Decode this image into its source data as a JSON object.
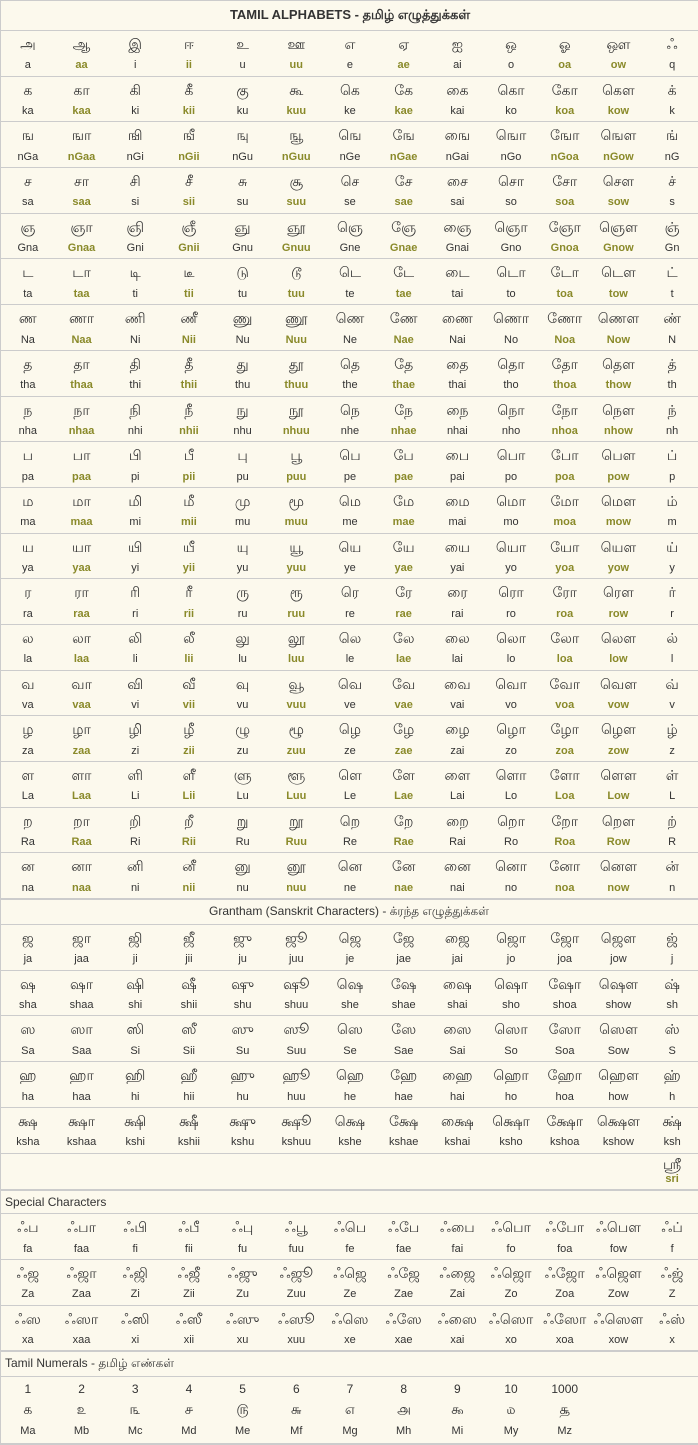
{
  "title": "TAMIL ALPHABETS - தமிழ் எழுத்துக்கள்",
  "hiCols": [
    1,
    3,
    5,
    7,
    10,
    11
  ],
  "main": [
    [
      [
        "அ",
        "a"
      ],
      [
        "ஆ",
        "aa"
      ],
      [
        "இ",
        "i"
      ],
      [
        "ஈ",
        "ii"
      ],
      [
        "உ",
        "u"
      ],
      [
        "ஊ",
        "uu"
      ],
      [
        "எ",
        "e"
      ],
      [
        "ஏ",
        "ae"
      ],
      [
        "ஐ",
        "ai"
      ],
      [
        "ஒ",
        "o"
      ],
      [
        "ஓ",
        "oa"
      ],
      [
        "ஔ",
        "ow"
      ],
      [
        "ஃ",
        "q"
      ]
    ],
    [
      [
        "க",
        "ka"
      ],
      [
        "கா",
        "kaa"
      ],
      [
        "கி",
        "ki"
      ],
      [
        "கீ",
        "kii"
      ],
      [
        "கு",
        "ku"
      ],
      [
        "கூ",
        "kuu"
      ],
      [
        "கெ",
        "ke"
      ],
      [
        "கே",
        "kae"
      ],
      [
        "கை",
        "kai"
      ],
      [
        "கொ",
        "ko"
      ],
      [
        "கோ",
        "koa"
      ],
      [
        "கௌ",
        "kow"
      ],
      [
        "க்",
        "k"
      ]
    ],
    [
      [
        "ங",
        "nGa"
      ],
      [
        "ஙா",
        "nGaa"
      ],
      [
        "ஙி",
        "nGi"
      ],
      [
        "ஙீ",
        "nGii"
      ],
      [
        "ஙு",
        "nGu"
      ],
      [
        "ஙூ",
        "nGuu"
      ],
      [
        "ஙெ",
        "nGe"
      ],
      [
        "ஙே",
        "nGae"
      ],
      [
        "ஙை",
        "nGai"
      ],
      [
        "ஙொ",
        "nGo"
      ],
      [
        "ஙோ",
        "nGoa"
      ],
      [
        "ஙௌ",
        "nGow"
      ],
      [
        "ங்",
        "nG"
      ]
    ],
    [
      [
        "ச",
        "sa"
      ],
      [
        "சா",
        "saa"
      ],
      [
        "சி",
        "si"
      ],
      [
        "சீ",
        "sii"
      ],
      [
        "சு",
        "su"
      ],
      [
        "சூ",
        "suu"
      ],
      [
        "செ",
        "se"
      ],
      [
        "சே",
        "sae"
      ],
      [
        "சை",
        "sai"
      ],
      [
        "சொ",
        "so"
      ],
      [
        "சோ",
        "soa"
      ],
      [
        "சௌ",
        "sow"
      ],
      [
        "ச்",
        "s"
      ]
    ],
    [
      [
        "ஞ",
        "Gna"
      ],
      [
        "ஞா",
        "Gnaa"
      ],
      [
        "ஞி",
        "Gni"
      ],
      [
        "ஞீ",
        "Gnii"
      ],
      [
        "ஞு",
        "Gnu"
      ],
      [
        "ஞூ",
        "Gnuu"
      ],
      [
        "ஞெ",
        "Gne"
      ],
      [
        "ஞே",
        "Gnae"
      ],
      [
        "ஞை",
        "Gnai"
      ],
      [
        "ஞொ",
        "Gno"
      ],
      [
        "ஞோ",
        "Gnoa"
      ],
      [
        "ஞௌ",
        "Gnow"
      ],
      [
        "ஞ்",
        "Gn"
      ]
    ],
    [
      [
        "ட",
        "ta"
      ],
      [
        "டா",
        "taa"
      ],
      [
        "டி",
        "ti"
      ],
      [
        "டீ",
        "tii"
      ],
      [
        "டு",
        "tu"
      ],
      [
        "டூ",
        "tuu"
      ],
      [
        "டெ",
        "te"
      ],
      [
        "டே",
        "tae"
      ],
      [
        "டை",
        "tai"
      ],
      [
        "டொ",
        "to"
      ],
      [
        "டோ",
        "toa"
      ],
      [
        "டௌ",
        "tow"
      ],
      [
        "ட்",
        "t"
      ]
    ],
    [
      [
        "ண",
        "Na"
      ],
      [
        "ணா",
        "Naa"
      ],
      [
        "ணி",
        "Ni"
      ],
      [
        "ணீ",
        "Nii"
      ],
      [
        "ணு",
        "Nu"
      ],
      [
        "ணூ",
        "Nuu"
      ],
      [
        "ணெ",
        "Ne"
      ],
      [
        "ணே",
        "Nae"
      ],
      [
        "ணை",
        "Nai"
      ],
      [
        "ணொ",
        "No"
      ],
      [
        "ணோ",
        "Noa"
      ],
      [
        "ணௌ",
        "Now"
      ],
      [
        "ண்",
        "N"
      ]
    ],
    [
      [
        "த",
        "tha"
      ],
      [
        "தா",
        "thaa"
      ],
      [
        "தி",
        "thi"
      ],
      [
        "தீ",
        "thii"
      ],
      [
        "து",
        "thu"
      ],
      [
        "தூ",
        "thuu"
      ],
      [
        "தெ",
        "the"
      ],
      [
        "தே",
        "thae"
      ],
      [
        "தை",
        "thai"
      ],
      [
        "தொ",
        "tho"
      ],
      [
        "தோ",
        "thoa"
      ],
      [
        "தௌ",
        "thow"
      ],
      [
        "த்",
        "th"
      ]
    ],
    [
      [
        "ந",
        "nha"
      ],
      [
        "நா",
        "nhaa"
      ],
      [
        "நி",
        "nhi"
      ],
      [
        "நீ",
        "nhii"
      ],
      [
        "நு",
        "nhu"
      ],
      [
        "நூ",
        "nhuu"
      ],
      [
        "நெ",
        "nhe"
      ],
      [
        "நே",
        "nhae"
      ],
      [
        "நை",
        "nhai"
      ],
      [
        "நொ",
        "nho"
      ],
      [
        "நோ",
        "nhoa"
      ],
      [
        "நௌ",
        "nhow"
      ],
      [
        "ந்",
        "nh"
      ]
    ],
    [
      [
        "ப",
        "pa"
      ],
      [
        "பா",
        "paa"
      ],
      [
        "பி",
        "pi"
      ],
      [
        "பீ",
        "pii"
      ],
      [
        "பு",
        "pu"
      ],
      [
        "பூ",
        "puu"
      ],
      [
        "பெ",
        "pe"
      ],
      [
        "பே",
        "pae"
      ],
      [
        "பை",
        "pai"
      ],
      [
        "பொ",
        "po"
      ],
      [
        "போ",
        "poa"
      ],
      [
        "பௌ",
        "pow"
      ],
      [
        "ப்",
        "p"
      ]
    ],
    [
      [
        "ம",
        "ma"
      ],
      [
        "மா",
        "maa"
      ],
      [
        "மி",
        "mi"
      ],
      [
        "மீ",
        "mii"
      ],
      [
        "மு",
        "mu"
      ],
      [
        "மூ",
        "muu"
      ],
      [
        "மெ",
        "me"
      ],
      [
        "மே",
        "mae"
      ],
      [
        "மை",
        "mai"
      ],
      [
        "மொ",
        "mo"
      ],
      [
        "மோ",
        "moa"
      ],
      [
        "மௌ",
        "mow"
      ],
      [
        "ம்",
        "m"
      ]
    ],
    [
      [
        "ய",
        "ya"
      ],
      [
        "யா",
        "yaa"
      ],
      [
        "யி",
        "yi"
      ],
      [
        "யீ",
        "yii"
      ],
      [
        "யு",
        "yu"
      ],
      [
        "யூ",
        "yuu"
      ],
      [
        "யெ",
        "ye"
      ],
      [
        "யே",
        "yae"
      ],
      [
        "யை",
        "yai"
      ],
      [
        "யொ",
        "yo"
      ],
      [
        "யோ",
        "yoa"
      ],
      [
        "யௌ",
        "yow"
      ],
      [
        "ய்",
        "y"
      ]
    ],
    [
      [
        "ர",
        "ra"
      ],
      [
        "ரா",
        "raa"
      ],
      [
        "ரி",
        "ri"
      ],
      [
        "ரீ",
        "rii"
      ],
      [
        "ரு",
        "ru"
      ],
      [
        "ரூ",
        "ruu"
      ],
      [
        "ரெ",
        "re"
      ],
      [
        "ரே",
        "rae"
      ],
      [
        "ரை",
        "rai"
      ],
      [
        "ரொ",
        "ro"
      ],
      [
        "ரோ",
        "roa"
      ],
      [
        "ரௌ",
        "row"
      ],
      [
        "ர்",
        "r"
      ]
    ],
    [
      [
        "ல",
        "la"
      ],
      [
        "லா",
        "laa"
      ],
      [
        "லி",
        "li"
      ],
      [
        "லீ",
        "lii"
      ],
      [
        "லு",
        "lu"
      ],
      [
        "லூ",
        "luu"
      ],
      [
        "லெ",
        "le"
      ],
      [
        "லே",
        "lae"
      ],
      [
        "லை",
        "lai"
      ],
      [
        "லொ",
        "lo"
      ],
      [
        "லோ",
        "loa"
      ],
      [
        "லௌ",
        "low"
      ],
      [
        "ல்",
        "l"
      ]
    ],
    [
      [
        "வ",
        "va"
      ],
      [
        "வா",
        "vaa"
      ],
      [
        "வி",
        "vi"
      ],
      [
        "வீ",
        "vii"
      ],
      [
        "வு",
        "vu"
      ],
      [
        "வூ",
        "vuu"
      ],
      [
        "வெ",
        "ve"
      ],
      [
        "வே",
        "vae"
      ],
      [
        "வை",
        "vai"
      ],
      [
        "வொ",
        "vo"
      ],
      [
        "வோ",
        "voa"
      ],
      [
        "வௌ",
        "vow"
      ],
      [
        "வ்",
        "v"
      ]
    ],
    [
      [
        "ழ",
        "za"
      ],
      [
        "ழா",
        "zaa"
      ],
      [
        "ழி",
        "zi"
      ],
      [
        "ழீ",
        "zii"
      ],
      [
        "ழு",
        "zu"
      ],
      [
        "ழூ",
        "zuu"
      ],
      [
        "ழெ",
        "ze"
      ],
      [
        "ழே",
        "zae"
      ],
      [
        "ழை",
        "zai"
      ],
      [
        "ழொ",
        "zo"
      ],
      [
        "ழோ",
        "zoa"
      ],
      [
        "ழௌ",
        "zow"
      ],
      [
        "ழ்",
        "z"
      ]
    ],
    [
      [
        "ள",
        "La"
      ],
      [
        "ளா",
        "Laa"
      ],
      [
        "ளி",
        "Li"
      ],
      [
        "ளீ",
        "Lii"
      ],
      [
        "ளு",
        "Lu"
      ],
      [
        "ளூ",
        "Luu"
      ],
      [
        "ளெ",
        "Le"
      ],
      [
        "ளே",
        "Lae"
      ],
      [
        "ளை",
        "Lai"
      ],
      [
        "ளொ",
        "Lo"
      ],
      [
        "ளோ",
        "Loa"
      ],
      [
        "ளௌ",
        "Low"
      ],
      [
        "ள்",
        "L"
      ]
    ],
    [
      [
        "ற",
        "Ra"
      ],
      [
        "றா",
        "Raa"
      ],
      [
        "றி",
        "Ri"
      ],
      [
        "றீ",
        "Rii"
      ],
      [
        "று",
        "Ru"
      ],
      [
        "றூ",
        "Ruu"
      ],
      [
        "றெ",
        "Re"
      ],
      [
        "றே",
        "Rae"
      ],
      [
        "றை",
        "Rai"
      ],
      [
        "றொ",
        "Ro"
      ],
      [
        "றோ",
        "Roa"
      ],
      [
        "றௌ",
        "Row"
      ],
      [
        "ற்",
        "R"
      ]
    ],
    [
      [
        "ன",
        "na"
      ],
      [
        "னா",
        "naa"
      ],
      [
        "னி",
        "ni"
      ],
      [
        "னீ",
        "nii"
      ],
      [
        "னு",
        "nu"
      ],
      [
        "னூ",
        "nuu"
      ],
      [
        "னெ",
        "ne"
      ],
      [
        "னே",
        "nae"
      ],
      [
        "னை",
        "nai"
      ],
      [
        "னொ",
        "no"
      ],
      [
        "னோ",
        "noa"
      ],
      [
        "னௌ",
        "now"
      ],
      [
        "ன்",
        "n"
      ]
    ]
  ],
  "granthamTitle": "Grantham (Sanskrit Characters) - க்ரந்த எழுத்துக்கள்",
  "grantham": [
    [
      [
        "ஜ",
        "ja"
      ],
      [
        "ஜா",
        "jaa"
      ],
      [
        "ஜி",
        "ji"
      ],
      [
        "ஜீ",
        "jii"
      ],
      [
        "ஜு",
        "ju"
      ],
      [
        "ஜூ",
        "juu"
      ],
      [
        "ஜெ",
        "je"
      ],
      [
        "ஜே",
        "jae"
      ],
      [
        "ஜை",
        "jai"
      ],
      [
        "ஜொ",
        "jo"
      ],
      [
        "ஜோ",
        "joa"
      ],
      [
        "ஜௌ",
        "jow"
      ],
      [
        "ஜ்",
        "j"
      ]
    ],
    [
      [
        "ஷ",
        "sha"
      ],
      [
        "ஷா",
        "shaa"
      ],
      [
        "ஷி",
        "shi"
      ],
      [
        "ஷீ",
        "shii"
      ],
      [
        "ஷு",
        "shu"
      ],
      [
        "ஷூ",
        "shuu"
      ],
      [
        "ஷெ",
        "she"
      ],
      [
        "ஷே",
        "shae"
      ],
      [
        "ஷை",
        "shai"
      ],
      [
        "ஷொ",
        "sho"
      ],
      [
        "ஷோ",
        "shoa"
      ],
      [
        "ஷௌ",
        "show"
      ],
      [
        "ஷ்",
        "sh"
      ]
    ],
    [
      [
        "ஸ",
        "Sa"
      ],
      [
        "ஸா",
        "Saa"
      ],
      [
        "ஸி",
        "Si"
      ],
      [
        "ஸீ",
        "Sii"
      ],
      [
        "ஸு",
        "Su"
      ],
      [
        "ஸூ",
        "Suu"
      ],
      [
        "ஸெ",
        "Se"
      ],
      [
        "ஸே",
        "Sae"
      ],
      [
        "ஸை",
        "Sai"
      ],
      [
        "ஸொ",
        "So"
      ],
      [
        "ஸோ",
        "Soa"
      ],
      [
        "ஸௌ",
        "Sow"
      ],
      [
        "ஸ்",
        "S"
      ]
    ],
    [
      [
        "ஹ",
        "ha"
      ],
      [
        "ஹா",
        "haa"
      ],
      [
        "ஹி",
        "hi"
      ],
      [
        "ஹீ",
        "hii"
      ],
      [
        "ஹு",
        "hu"
      ],
      [
        "ஹூ",
        "huu"
      ],
      [
        "ஹெ",
        "he"
      ],
      [
        "ஹே",
        "hae"
      ],
      [
        "ஹை",
        "hai"
      ],
      [
        "ஹொ",
        "ho"
      ],
      [
        "ஹோ",
        "hoa"
      ],
      [
        "ஹௌ",
        "how"
      ],
      [
        "ஹ்",
        "h"
      ]
    ],
    [
      [
        "க்ஷ",
        "ksha"
      ],
      [
        "க்ஷா",
        "kshaa"
      ],
      [
        "க்ஷி",
        "kshi"
      ],
      [
        "க்ஷீ",
        "kshii"
      ],
      [
        "க்ஷு",
        "kshu"
      ],
      [
        "க்ஷூ",
        "kshuu"
      ],
      [
        "க்ஷெ",
        "kshe"
      ],
      [
        "க்ஷே",
        "kshae"
      ],
      [
        "க்ஷை",
        "kshai"
      ],
      [
        "க்ஷொ",
        "ksho"
      ],
      [
        "க்ஷோ",
        "kshoa"
      ],
      [
        "க்ஷௌ",
        "kshow"
      ],
      [
        "க்ஷ்",
        "ksh"
      ]
    ]
  ],
  "sri": {
    "glyph": "ஸ்ரீ",
    "roman": "sri"
  },
  "specialTitle": "Special Characters",
  "special": [
    [
      [
        "ஃப",
        "fa"
      ],
      [
        "ஃபா",
        "faa"
      ],
      [
        "ஃபி",
        "fi"
      ],
      [
        "ஃபீ",
        "fii"
      ],
      [
        "ஃபு",
        "fu"
      ],
      [
        "ஃபூ",
        "fuu"
      ],
      [
        "ஃபெ",
        "fe"
      ],
      [
        "ஃபே",
        "fae"
      ],
      [
        "ஃபை",
        "fai"
      ],
      [
        "ஃபொ",
        "fo"
      ],
      [
        "ஃபோ",
        "foa"
      ],
      [
        "ஃபௌ",
        "fow"
      ],
      [
        "ஃப்",
        "f"
      ]
    ],
    [
      [
        "ஃஜ",
        "Za"
      ],
      [
        "ஃஜா",
        "Zaa"
      ],
      [
        "ஃஜி",
        "Zi"
      ],
      [
        "ஃஜீ",
        "Zii"
      ],
      [
        "ஃஜு",
        "Zu"
      ],
      [
        "ஃஜூ",
        "Zuu"
      ],
      [
        "ஃஜெ",
        "Ze"
      ],
      [
        "ஃஜே",
        "Zae"
      ],
      [
        "ஃஜை",
        "Zai"
      ],
      [
        "ஃஜொ",
        "Zo"
      ],
      [
        "ஃஜோ",
        "Zoa"
      ],
      [
        "ஃஜௌ",
        "Zow"
      ],
      [
        "ஃஜ்",
        "Z"
      ]
    ],
    [
      [
        "ஃஸ",
        "xa"
      ],
      [
        "ஃஸா",
        "xaa"
      ],
      [
        "ஃஸி",
        "xi"
      ],
      [
        "ஃஸீ",
        "xii"
      ],
      [
        "ஃஸு",
        "xu"
      ],
      [
        "ஃஸூ",
        "xuu"
      ],
      [
        "ஃஸெ",
        "xe"
      ],
      [
        "ஃஸே",
        "xae"
      ],
      [
        "ஃஸை",
        "xai"
      ],
      [
        "ஃஸொ",
        "xo"
      ],
      [
        "ஃஸோ",
        "xoa"
      ],
      [
        "ஃஸௌ",
        "xow"
      ],
      [
        "ஃஸ்",
        "x"
      ]
    ]
  ],
  "numeralsTitle": "Tamil Numerals - தமிழ் எண்கள்",
  "numerals": {
    "top": [
      "1",
      "2",
      "3",
      "4",
      "5",
      "6",
      "7",
      "8",
      "9",
      "10",
      "1000"
    ],
    "glyph": [
      "௧",
      "௨",
      "௩",
      "௪",
      "௫",
      "௬",
      "௭",
      "௮",
      "௯",
      "௰",
      "௲"
    ],
    "code": [
      "Ma",
      "Mb",
      "Mc",
      "Md",
      "Me",
      "Mf",
      "Mg",
      "Mh",
      "Mi",
      "My",
      "Mz"
    ]
  }
}
